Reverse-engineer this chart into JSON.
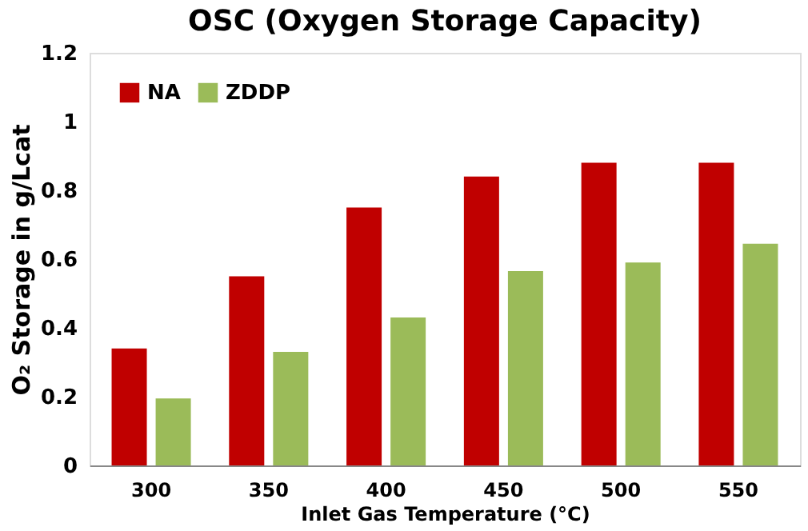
{
  "chart_data": {
    "type": "bar",
    "title": "OSC (Oxygen Storage Capacity)",
    "xlabel": "Inlet Gas Temperature (°C)",
    "ylabel": "O₂ Storage in g/Lcat",
    "categories": [
      "300",
      "350",
      "400",
      "450",
      "500",
      "550"
    ],
    "series": [
      {
        "name": "NA",
        "color": "#c00000",
        "values": [
          0.34,
          0.55,
          0.75,
          0.84,
          0.88,
          0.88
        ]
      },
      {
        "name": "ZDDP",
        "color": "#9bbb59",
        "values": [
          0.195,
          0.33,
          0.43,
          0.565,
          0.59,
          0.645
        ]
      }
    ],
    "ylim": [
      0,
      1.2
    ],
    "yticks": [
      0,
      0.2,
      0.4,
      0.6,
      0.8,
      1,
      1.2
    ],
    "grid": false,
    "legend": "top left"
  }
}
